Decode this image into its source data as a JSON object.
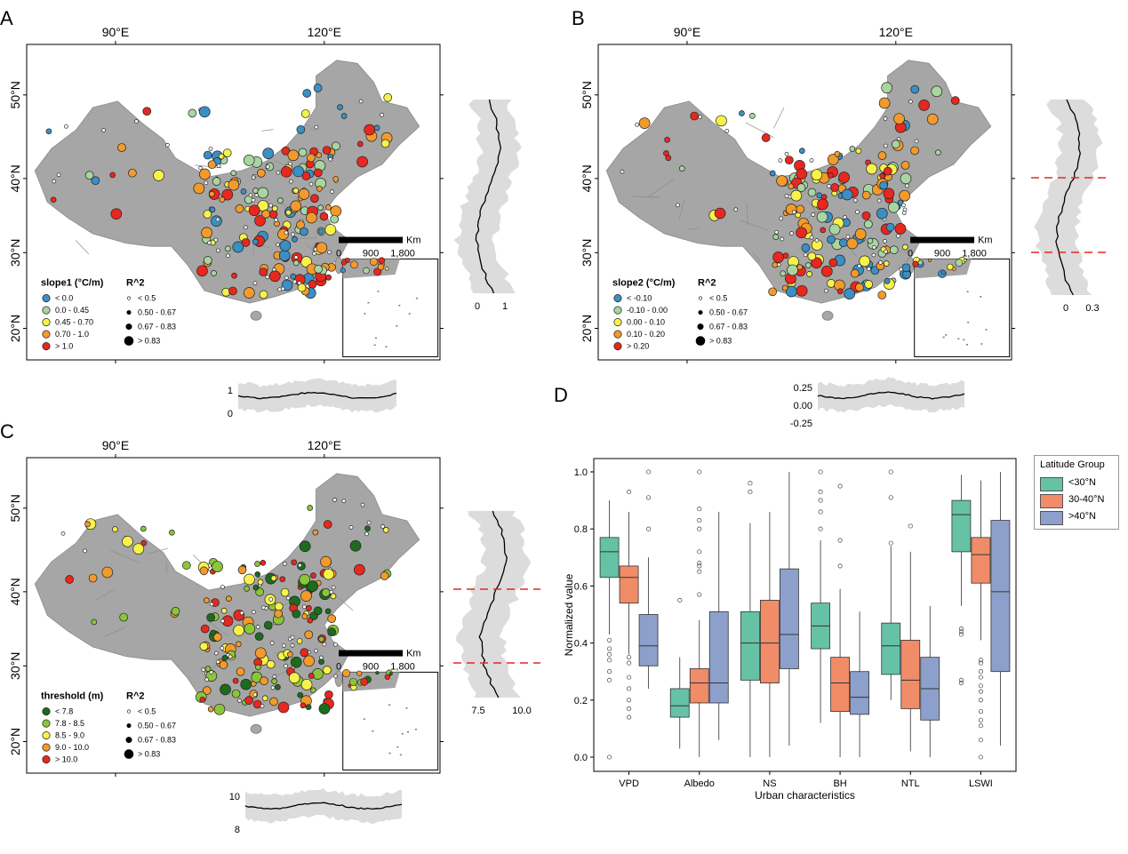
{
  "panels": {
    "A": {
      "letter": "A",
      "lon_labels": [
        "90°E",
        "120°E"
      ],
      "lat_labels": [
        "50°N",
        "40°N",
        "30°N",
        "20°N"
      ],
      "scale_bar": {
        "unit": "Km",
        "ticks": [
          "0",
          "900",
          "1,800"
        ]
      },
      "legend_color": {
        "title": "slope1 (°C/m)",
        "items": [
          {
            "label": "< 0.0",
            "color": "#3a8fc4"
          },
          {
            "label": "0.0 - 0.45",
            "color": "#a8d5a0"
          },
          {
            "label": "0.45 - 0.70",
            "color": "#f7f24a"
          },
          {
            "label": "0.70 - 1.0",
            "color": "#f39a2c"
          },
          {
            "label": "> 1.0",
            "color": "#e8271f"
          }
        ]
      },
      "legend_size": {
        "title": "R^2",
        "items": [
          "< 0.5",
          "0.50 - 0.67",
          "0.67 - 0.83",
          "> 0.83"
        ]
      },
      "lat_profile_ticks": [
        "0",
        "1"
      ],
      "lon_profile_ticks": [
        "1",
        "0"
      ]
    },
    "B": {
      "letter": "B",
      "lon_labels": [
        "90°E",
        "120°E"
      ],
      "lat_labels": [
        "50°N",
        "40°N",
        "30°N",
        "20°N"
      ],
      "scale_bar": {
        "unit": "Km",
        "ticks": [
          "0",
          "900",
          "1,800"
        ]
      },
      "legend_color": {
        "title": "slope2 (°C/m)",
        "items": [
          {
            "label": "< -0.10",
            "color": "#3a8fc4"
          },
          {
            "label": "-0.10 - 0.00",
            "color": "#a8d5a0"
          },
          {
            "label": "0.00 - 0.10",
            "color": "#f7f24a"
          },
          {
            "label": "0.10 - 0.20",
            "color": "#f39a2c"
          },
          {
            "label": "> 0.20",
            "color": "#e8271f"
          }
        ]
      },
      "legend_size": {
        "title": "R^2",
        "items": [
          "< 0.5",
          "0.50 - 0.67",
          "0.67 - 0.83",
          "> 0.83"
        ]
      },
      "lat_profile_ticks": [
        "0",
        "0.3"
      ],
      "lon_profile_ticks": [
        "0.25",
        "0.00",
        "-0.25"
      ]
    },
    "C": {
      "letter": "C",
      "lon_labels": [
        "90°E",
        "120°E"
      ],
      "lat_labels": [
        "50°N",
        "40°N",
        "30°N",
        "20°N"
      ],
      "scale_bar": {
        "unit": "Km",
        "ticks": [
          "0",
          "900",
          "1,800"
        ]
      },
      "legend_color": {
        "title": "threshold (m)",
        "items": [
          {
            "label": "< 7.8",
            "color": "#1e6b1e"
          },
          {
            "label": "7.8 - 8.5",
            "color": "#8cc43a"
          },
          {
            "label": "8.5 - 9.0",
            "color": "#f7f24a"
          },
          {
            "label": "9.0 - 10.0",
            "color": "#f39a2c"
          },
          {
            "label": "> 10.0",
            "color": "#e8271f"
          }
        ]
      },
      "legend_size": {
        "title": "R^2",
        "items": [
          "< 0.5",
          "0.50 - 0.67",
          "0.67 - 0.83",
          "> 0.83"
        ]
      },
      "lat_profile_ticks": [
        "7.5",
        "10.0"
      ],
      "lon_profile_ticks": [
        "10",
        "8"
      ]
    },
    "D": {
      "letter": "D"
    }
  },
  "chart_data": {
    "type": "box",
    "xlabel": "Urban characteristics",
    "ylabel": "Normalized value",
    "ylim": [
      0,
      1
    ],
    "yticks": [
      "0.0",
      "0.2",
      "0.4",
      "0.6",
      "0.8",
      "1.0"
    ],
    "categories": [
      "VPD",
      "Albedo",
      "NS",
      "BH",
      "NTL",
      "LSWI"
    ],
    "legend": {
      "title": "Latitude Group",
      "position": "right"
    },
    "series": [
      {
        "name": "<30°N",
        "color": "#66c2a5",
        "boxes": [
          {
            "min": 0.43,
            "q1": 0.63,
            "median": 0.72,
            "q3": 0.77,
            "max": 0.9,
            "outliers": [
              0.41,
              0.38,
              0.36,
              0.34,
              0.3,
              0.27,
              0.0
            ]
          },
          {
            "min": 0.03,
            "q1": 0.14,
            "median": 0.18,
            "q3": 0.24,
            "max": 0.35,
            "outliers": [
              0.55
            ]
          },
          {
            "min": 0.0,
            "q1": 0.27,
            "median": 0.4,
            "q3": 0.51,
            "max": 0.82,
            "outliers": [
              0.93,
              0.96
            ]
          },
          {
            "min": 0.12,
            "q1": 0.38,
            "median": 0.46,
            "q3": 0.54,
            "max": 0.76,
            "outliers": [
              0.8,
              0.86,
              0.9,
              0.93,
              1.0
            ]
          },
          {
            "min": 0.2,
            "q1": 0.29,
            "median": 0.39,
            "q3": 0.47,
            "max": 0.74,
            "outliers": [
              0.75,
              0.91,
              1.0
            ]
          },
          {
            "min": 0.53,
            "q1": 0.72,
            "median": 0.85,
            "q3": 0.9,
            "max": 0.99,
            "outliers": [
              0.45,
              0.44,
              0.43,
              0.27,
              0.26
            ]
          }
        ]
      },
      {
        "name": "30-40°N",
        "color": "#f08c68",
        "boxes": [
          {
            "min": 0.36,
            "q1": 0.54,
            "median": 0.63,
            "q3": 0.67,
            "max": 0.86,
            "outliers": [
              0.93,
              0.35,
              0.33,
              0.28,
              0.24,
              0.2,
              0.17,
              0.14
            ]
          },
          {
            "min": 0.0,
            "q1": 0.19,
            "median": 0.26,
            "q3": 0.31,
            "max": 0.48,
            "outliers": [
              0.57,
              0.65,
              0.67,
              0.68,
              0.72,
              0.8,
              0.83,
              0.87,
              1.0
            ]
          },
          {
            "min": 0.0,
            "q1": 0.26,
            "median": 0.4,
            "q3": 0.55,
            "max": 0.86,
            "outliers": []
          },
          {
            "min": 0.0,
            "q1": 0.16,
            "median": 0.26,
            "q3": 0.35,
            "max": 0.59,
            "outliers": [
              0.67,
              0.76,
              0.95
            ]
          },
          {
            "min": 0.02,
            "q1": 0.17,
            "median": 0.27,
            "q3": 0.41,
            "max": 0.72,
            "outliers": [
              0.81
            ]
          },
          {
            "min": 0.41,
            "q1": 0.61,
            "median": 0.71,
            "q3": 0.77,
            "max": 0.97,
            "outliers": [
              0.34,
              0.33,
              0.3,
              0.28,
              0.25,
              0.23,
              0.2,
              0.16,
              0.13,
              0.11,
              0.06,
              0.0
            ]
          }
        ]
      },
      {
        "name": ">40°N",
        "color": "#8da0cb",
        "boxes": [
          {
            "min": 0.24,
            "q1": 0.32,
            "median": 0.39,
            "q3": 0.5,
            "max": 0.7,
            "outliers": [
              0.8,
              0.91,
              1.0
            ]
          },
          {
            "min": 0.06,
            "q1": 0.19,
            "median": 0.26,
            "q3": 0.51,
            "max": 0.86,
            "outliers": []
          },
          {
            "min": 0.04,
            "q1": 0.31,
            "median": 0.43,
            "q3": 0.66,
            "max": 1.0,
            "outliers": []
          },
          {
            "min": 0.0,
            "q1": 0.15,
            "median": 0.21,
            "q3": 0.3,
            "max": 0.51,
            "outliers": []
          },
          {
            "min": 0.0,
            "q1": 0.13,
            "median": 0.24,
            "q3": 0.35,
            "max": 0.53,
            "outliers": []
          },
          {
            "min": 0.04,
            "q1": 0.3,
            "median": 0.58,
            "q3": 0.83,
            "max": 1.0,
            "outliers": []
          }
        ]
      }
    ]
  }
}
